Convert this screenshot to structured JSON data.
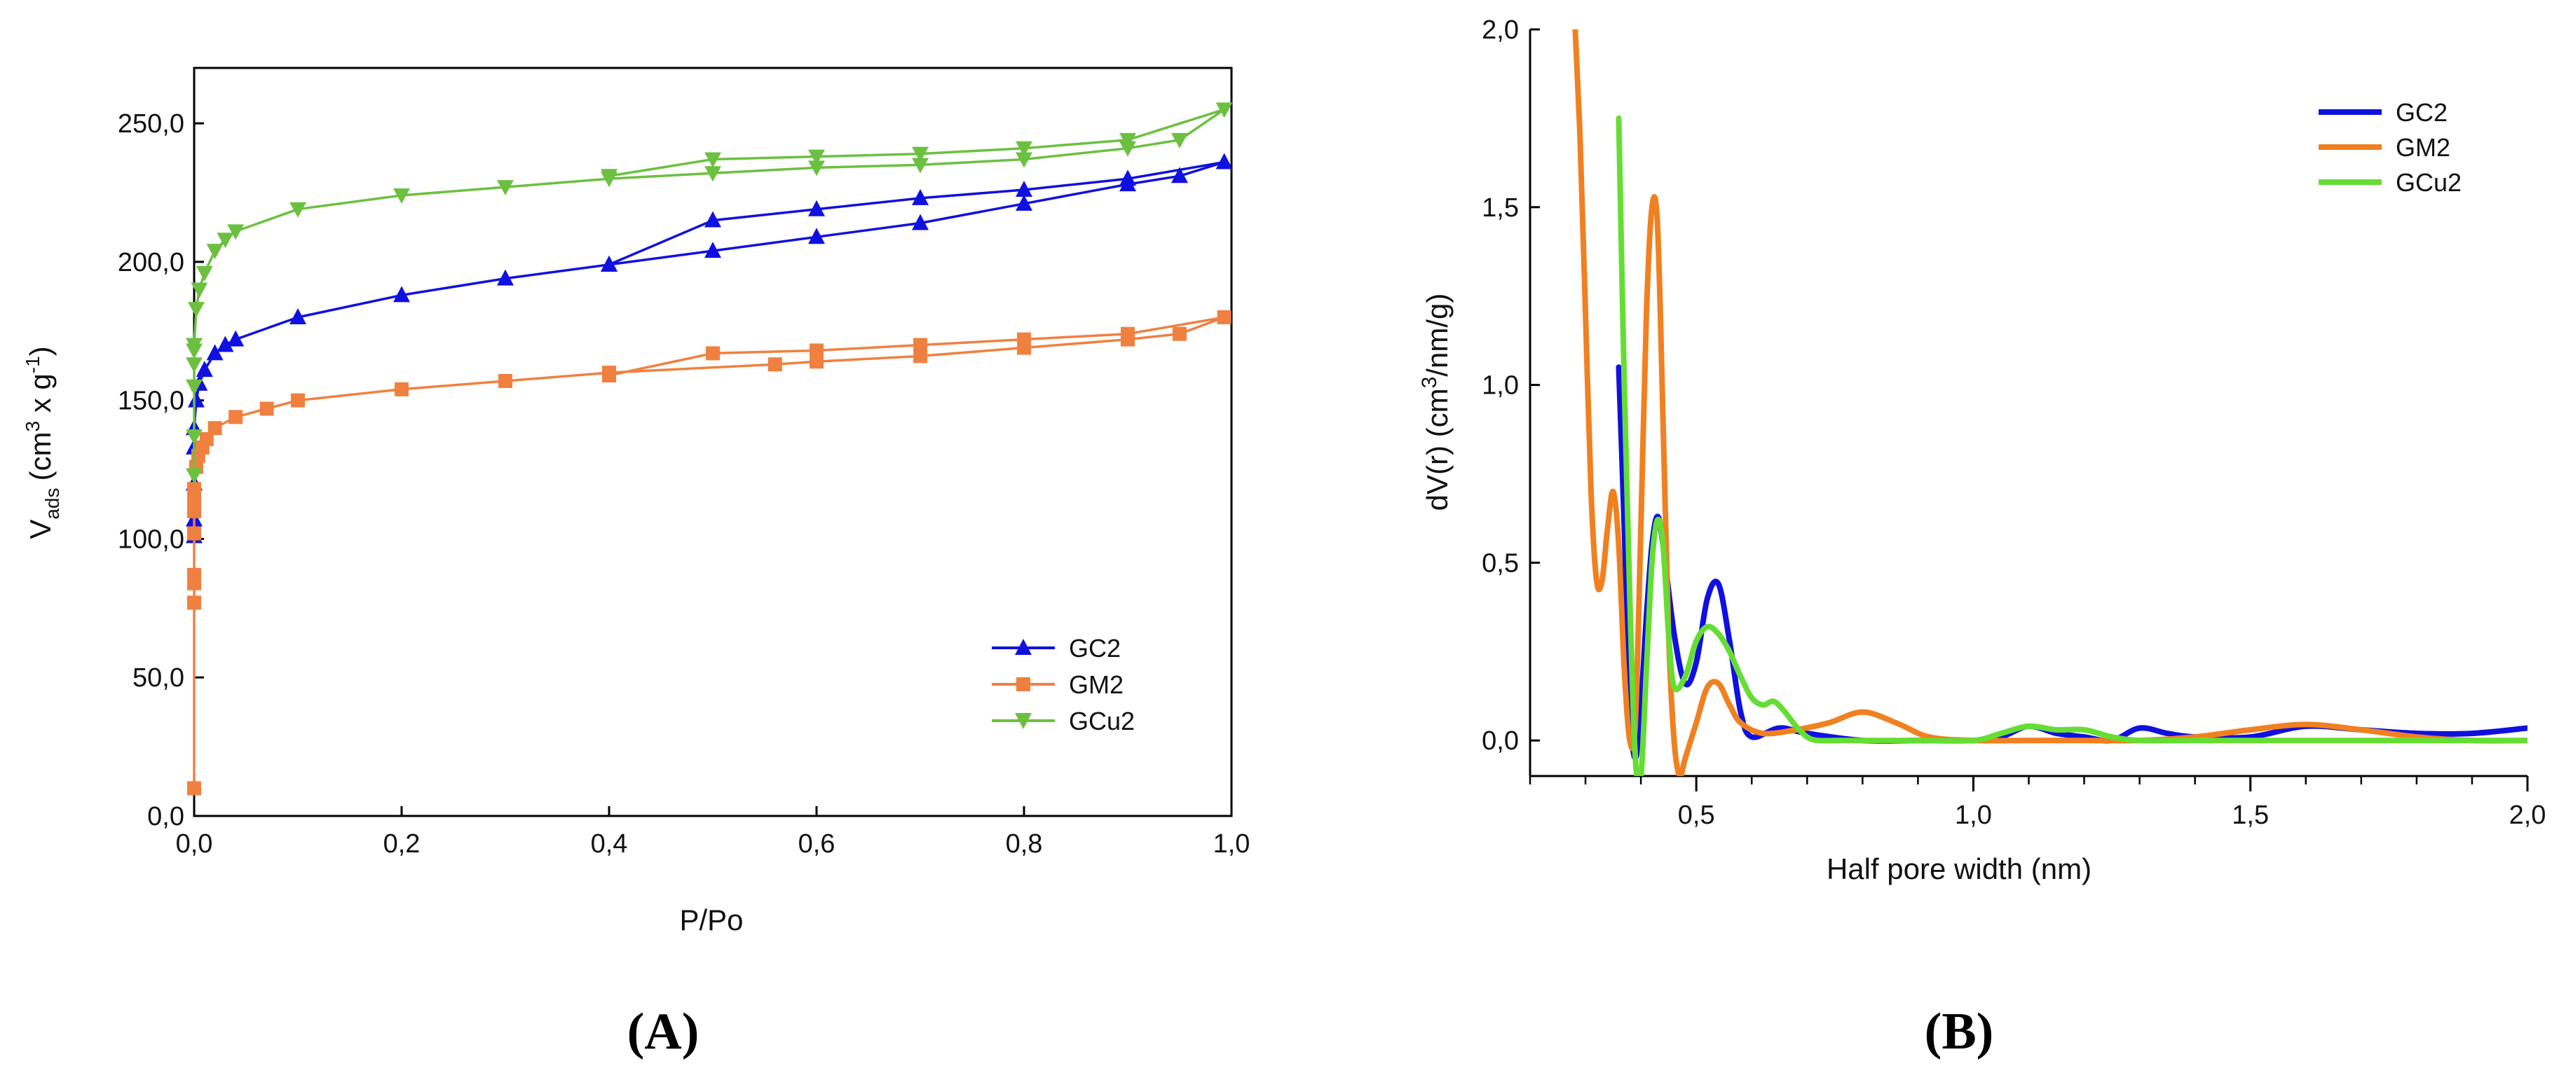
{
  "chart_data": [
    {
      "panel": "(A)",
      "type": "line",
      "xlabel": "P/Po",
      "ylabel_main": "V",
      "ylabel_sub": "ads",
      "ylabel_unit_pre": "(cm",
      "ylabel_unit_sup1": "3",
      "ylabel_unit_mid": " x g",
      "ylabel_unit_sup2": "-1",
      "ylabel_unit_post": ")",
      "xlim": [
        0,
        1.0
      ],
      "ylim": [
        0,
        270
      ],
      "xticks": [
        0.0,
        0.2,
        0.4,
        0.6,
        0.8,
        1.0
      ],
      "xtick_labels": [
        "0,0",
        "0,2",
        "0,4",
        "0,6",
        "0,8",
        "1,0"
      ],
      "yticks": [
        0,
        50,
        100,
        150,
        200,
        250
      ],
      "ytick_labels": [
        "0,0",
        "50,0",
        "100,0",
        "150,0",
        "200,0",
        "250,0"
      ],
      "legend_position": "bottom-right",
      "series": [
        {
          "name": "GC2",
          "color": "#1010e0",
          "marker": "triangle-up",
          "x": [
            0.0,
            0.0,
            0.0,
            0.0,
            0.0,
            0.002,
            0.005,
            0.01,
            0.02,
            0.03,
            0.04,
            0.1,
            0.2,
            0.3,
            0.4,
            0.5,
            0.6,
            0.7,
            0.8,
            0.9,
            0.95,
            0.993,
            0.9,
            0.8,
            0.7,
            0.6,
            0.5,
            0.4
          ],
          "y": [
            101,
            107,
            120,
            133,
            140,
            150,
            156,
            161,
            167,
            170,
            172,
            180,
            188,
            194,
            199,
            204,
            209,
            214,
            221,
            228,
            231,
            236,
            230,
            226,
            223,
            219,
            215,
            199
          ]
        },
        {
          "name": "GM2",
          "color": "#f08040",
          "marker": "square",
          "x": [
            0.0,
            0.0,
            0.0,
            0.0,
            0.0,
            0.0,
            0.0,
            0.0,
            0.002,
            0.004,
            0.008,
            0.012,
            0.02,
            0.04,
            0.07,
            0.1,
            0.2,
            0.3,
            0.4,
            0.56,
            0.6,
            0.7,
            0.8,
            0.9,
            0.95,
            0.993,
            0.9,
            0.8,
            0.7,
            0.6,
            0.5,
            0.4
          ],
          "y": [
            10,
            77,
            84,
            87,
            102,
            110,
            114,
            118,
            126,
            130,
            133,
            136,
            140,
            144,
            147,
            150,
            154,
            157,
            160,
            163,
            164,
            166,
            169,
            172,
            174,
            180,
            174,
            172,
            170,
            168,
            167,
            159
          ]
        },
        {
          "name": "GCu2",
          "color": "#6cc040",
          "marker": "triangle-down",
          "x": [
            0.0,
            0.0,
            0.0,
            0.0,
            0.0,
            0.0,
            0.002,
            0.005,
            0.01,
            0.02,
            0.03,
            0.04,
            0.1,
            0.2,
            0.3,
            0.4,
            0.5,
            0.6,
            0.7,
            0.8,
            0.9,
            0.95,
            0.993,
            0.9,
            0.8,
            0.7,
            0.6,
            0.5,
            0.4
          ],
          "y": [
            123,
            137,
            155,
            163,
            168,
            170,
            183,
            190,
            196,
            204,
            208,
            211,
            219,
            224,
            227,
            230,
            232,
            234,
            235,
            237,
            241,
            244,
            255,
            244,
            241,
            239,
            238,
            237,
            231
          ]
        }
      ]
    },
    {
      "panel": "(B)",
      "type": "line",
      "xlabel": "Half pore width (nm)",
      "ylabel_pre": "dV(r) (cm",
      "ylabel_sup": "3",
      "ylabel_post": "/nm/g)",
      "xlim": [
        0.2,
        2.0
      ],
      "ylim": [
        -0.1,
        2.0
      ],
      "xticks": [
        0.5,
        1.0,
        1.5,
        2.0
      ],
      "xtick_labels": [
        "0,5",
        "1,0",
        "1,5",
        "2,0"
      ],
      "xminor": [
        0.2,
        0.3,
        0.4,
        0.6,
        0.7,
        0.8,
        0.9,
        1.1,
        1.2,
        1.3,
        1.4,
        1.6,
        1.7,
        1.8,
        1.9
      ],
      "yticks": [
        0.0,
        0.5,
        1.0,
        1.5,
        2.0
      ],
      "ytick_labels": [
        "0,0",
        "0,5",
        "1,0",
        "1,5",
        "2,0"
      ],
      "legend_position": "top-right",
      "series": [
        {
          "name": "GC2",
          "color": "#1010e0",
          "x": [
            0.36,
            0.37,
            0.38,
            0.39,
            0.4,
            0.41,
            0.42,
            0.43,
            0.44,
            0.46,
            0.48,
            0.5,
            0.52,
            0.54,
            0.56,
            0.58,
            0.6,
            0.65,
            0.7,
            0.8,
            0.9,
            1.0,
            1.05,
            1.1,
            1.15,
            1.2,
            1.25,
            1.3,
            1.35,
            1.4,
            1.5,
            1.6,
            1.7,
            1.8,
            1.9,
            2.0
          ],
          "y": [
            1.05,
            0.6,
            0.1,
            -0.05,
            0.1,
            0.35,
            0.55,
            0.63,
            0.55,
            0.3,
            0.16,
            0.22,
            0.4,
            0.44,
            0.28,
            0.08,
            0.01,
            0.035,
            0.02,
            0.0,
            0.0,
            0.0,
            0.01,
            0.04,
            0.02,
            0.01,
            0.0,
            0.035,
            0.02,
            0.01,
            0.01,
            0.04,
            0.03,
            0.02,
            0.02,
            0.035
          ]
        },
        {
          "name": "GM2",
          "color": "#f08020",
          "x": [
            0.28,
            0.29,
            0.3,
            0.31,
            0.32,
            0.33,
            0.34,
            0.35,
            0.36,
            0.37,
            0.38,
            0.39,
            0.4,
            0.41,
            0.42,
            0.43,
            0.44,
            0.45,
            0.46,
            0.47,
            0.48,
            0.5,
            0.52,
            0.54,
            0.56,
            0.58,
            0.62,
            0.68,
            0.74,
            0.8,
            0.86,
            0.92,
            1.0,
            1.1,
            1.2,
            1.3,
            1.4,
            1.5,
            1.6,
            1.7,
            1.8,
            1.9,
            2.0
          ],
          "y": [
            2.05,
            1.7,
            1.2,
            0.7,
            0.45,
            0.45,
            0.6,
            0.7,
            0.55,
            0.2,
            0.0,
            0.05,
            0.6,
            1.2,
            1.5,
            1.45,
            0.9,
            0.3,
            0.0,
            -0.1,
            -0.05,
            0.05,
            0.15,
            0.16,
            0.1,
            0.05,
            0.02,
            0.03,
            0.05,
            0.08,
            0.05,
            0.01,
            0.0,
            0.0,
            0.0,
            0.0,
            0.01,
            0.03,
            0.045,
            0.03,
            0.01,
            0.0,
            0.0
          ]
        },
        {
          "name": "GCu2",
          "color": "#66dd33",
          "x": [
            0.36,
            0.37,
            0.38,
            0.39,
            0.4,
            0.41,
            0.42,
            0.43,
            0.44,
            0.45,
            0.46,
            0.48,
            0.5,
            0.52,
            0.54,
            0.56,
            0.58,
            0.6,
            0.62,
            0.64,
            0.66,
            0.68,
            0.7,
            0.72,
            0.76,
            0.8,
            0.9,
            1.0,
            1.05,
            1.1,
            1.15,
            1.2,
            1.25,
            1.3,
            1.4,
            1.5,
            1.6,
            1.7,
            1.8,
            1.9,
            2.0
          ],
          "y": [
            1.75,
            1.0,
            0.4,
            -0.05,
            -0.1,
            0.2,
            0.5,
            0.62,
            0.55,
            0.3,
            0.15,
            0.18,
            0.28,
            0.32,
            0.3,
            0.25,
            0.18,
            0.12,
            0.1,
            0.11,
            0.08,
            0.04,
            0.01,
            0.0,
            0.0,
            0.0,
            0.0,
            0.0,
            0.02,
            0.04,
            0.03,
            0.03,
            0.01,
            0.0,
            0.0,
            0.0,
            0.0,
            0.0,
            0.0,
            0.0,
            0.0
          ]
        }
      ]
    }
  ]
}
